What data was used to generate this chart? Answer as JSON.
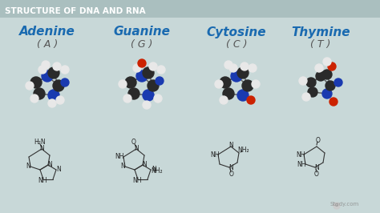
{
  "title": "STRUCTURE OF DNA AND RNA",
  "title_color": "#555555",
  "title_bg_start": "#b0c4c4",
  "title_bg_end": "#d8e8e8",
  "bg_color": "#c8d8d8",
  "panel_bg": "#d0dede",
  "names": [
    "Adenine",
    "Guanine",
    "Cytosine",
    "Thymine"
  ],
  "letters": [
    "( A )",
    "( G )",
    "( C )",
    "( T )"
  ],
  "name_color": "#1a6ab0",
  "letter_color": "#555555",
  "watermark": "Study.com",
  "watermark_color": "#888888"
}
